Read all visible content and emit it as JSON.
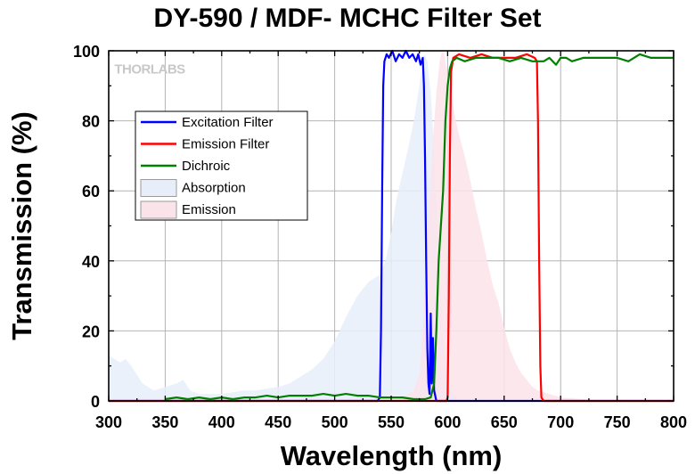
{
  "chart_data": {
    "type": "line",
    "title": "DY-590 / MDF- MCHC Filter Set",
    "xlabel": "Wavelength (nm)",
    "ylabel": "Transmission (%)",
    "xlim": [
      300,
      800
    ],
    "ylim": [
      0,
      100
    ],
    "x_ticks": [
      300,
      350,
      400,
      450,
      500,
      550,
      600,
      650,
      700,
      750,
      800
    ],
    "y_ticks": [
      0,
      20,
      40,
      60,
      80,
      100
    ],
    "grid": true,
    "legend_position": "upper-left",
    "watermark": "THORLABS",
    "series": [
      {
        "name": "Excitation Filter",
        "kind": "line",
        "color": "#0000ff",
        "points": [
          [
            300,
            0
          ],
          [
            538,
            0
          ],
          [
            540,
            1
          ],
          [
            541,
            20
          ],
          [
            542,
            60
          ],
          [
            543,
            90
          ],
          [
            544,
            97
          ],
          [
            546,
            99
          ],
          [
            548,
            98
          ],
          [
            551,
            100
          ],
          [
            554,
            97
          ],
          [
            557,
            99
          ],
          [
            560,
            98
          ],
          [
            563,
            100
          ],
          [
            566,
            98
          ],
          [
            569,
            99
          ],
          [
            572,
            97
          ],
          [
            574,
            99
          ],
          [
            576,
            96
          ],
          [
            578,
            98
          ],
          [
            579,
            90
          ],
          [
            580,
            70
          ],
          [
            581,
            40
          ],
          [
            582,
            15
          ],
          [
            583,
            5
          ],
          [
            584,
            2
          ],
          [
            585,
            25
          ],
          [
            586,
            5
          ],
          [
            587,
            18
          ],
          [
            588,
            3
          ],
          [
            590,
            0
          ],
          [
            800,
            0
          ]
        ]
      },
      {
        "name": "Emission Filter",
        "kind": "line",
        "color": "#ff0000",
        "points": [
          [
            300,
            0
          ],
          [
            599,
            0
          ],
          [
            600,
            1
          ],
          [
            601,
            30
          ],
          [
            602,
            70
          ],
          [
            603,
            94
          ],
          [
            605,
            98
          ],
          [
            610,
            99
          ],
          [
            620,
            98
          ],
          [
            630,
            99
          ],
          [
            640,
            98
          ],
          [
            650,
            98
          ],
          [
            660,
            98
          ],
          [
            670,
            99
          ],
          [
            677,
            98
          ],
          [
            679,
            97
          ],
          [
            680,
            80
          ],
          [
            681,
            40
          ],
          [
            682,
            10
          ],
          [
            683,
            1
          ],
          [
            685,
            0
          ],
          [
            800,
            0
          ]
        ]
      },
      {
        "name": "Dichroic",
        "kind": "line",
        "color": "#008000",
        "points": [
          [
            350,
            0.5
          ],
          [
            360,
            1
          ],
          [
            370,
            0.5
          ],
          [
            380,
            1
          ],
          [
            390,
            0.5
          ],
          [
            400,
            1
          ],
          [
            410,
            0.5
          ],
          [
            420,
            1
          ],
          [
            430,
            1
          ],
          [
            440,
            1.5
          ],
          [
            450,
            1
          ],
          [
            460,
            1.5
          ],
          [
            470,
            1.5
          ],
          [
            480,
            1.5
          ],
          [
            490,
            2
          ],
          [
            500,
            1.5
          ],
          [
            510,
            2
          ],
          [
            520,
            1.5
          ],
          [
            530,
            1.5
          ],
          [
            540,
            1
          ],
          [
            550,
            1
          ],
          [
            560,
            1
          ],
          [
            570,
            0.5
          ],
          [
            580,
            0.5
          ],
          [
            585,
            1
          ],
          [
            588,
            5
          ],
          [
            590,
            20
          ],
          [
            592,
            40
          ],
          [
            594,
            50
          ],
          [
            596,
            60
          ],
          [
            598,
            80
          ],
          [
            600,
            90
          ],
          [
            602,
            95
          ],
          [
            604,
            97
          ],
          [
            608,
            98
          ],
          [
            615,
            97
          ],
          [
            625,
            98
          ],
          [
            635,
            98
          ],
          [
            645,
            98
          ],
          [
            655,
            97
          ],
          [
            665,
            98
          ],
          [
            675,
            97
          ],
          [
            685,
            97
          ],
          [
            690,
            98
          ],
          [
            696,
            96
          ],
          [
            700,
            98
          ],
          [
            705,
            98
          ],
          [
            710,
            97
          ],
          [
            720,
            98
          ],
          [
            730,
            98
          ],
          [
            740,
            98
          ],
          [
            750,
            98
          ],
          [
            760,
            97
          ],
          [
            770,
            99
          ],
          [
            780,
            98
          ],
          [
            790,
            98
          ],
          [
            800,
            98
          ]
        ]
      },
      {
        "name": "Absorption",
        "kind": "area",
        "color": "#e8eef9",
        "points": [
          [
            300,
            13
          ],
          [
            310,
            11
          ],
          [
            315,
            12
          ],
          [
            320,
            10
          ],
          [
            330,
            5
          ],
          [
            340,
            3
          ],
          [
            350,
            4
          ],
          [
            360,
            5
          ],
          [
            366,
            6
          ],
          [
            372,
            3
          ],
          [
            380,
            2
          ],
          [
            390,
            2
          ],
          [
            400,
            2
          ],
          [
            410,
            2.5
          ],
          [
            420,
            3
          ],
          [
            430,
            3
          ],
          [
            440,
            3.5
          ],
          [
            450,
            4
          ],
          [
            460,
            5
          ],
          [
            470,
            7
          ],
          [
            480,
            9
          ],
          [
            490,
            12
          ],
          [
            500,
            17
          ],
          [
            510,
            24
          ],
          [
            520,
            30
          ],
          [
            530,
            34
          ],
          [
            540,
            36
          ],
          [
            545,
            40
          ],
          [
            550,
            48
          ],
          [
            555,
            58
          ],
          [
            560,
            65
          ],
          [
            565,
            72
          ],
          [
            570,
            80
          ],
          [
            575,
            90
          ],
          [
            578,
            98
          ],
          [
            580,
            99
          ],
          [
            582,
            97
          ],
          [
            585,
            88
          ],
          [
            588,
            72
          ],
          [
            591,
            50
          ],
          [
            594,
            30
          ],
          [
            597,
            15
          ],
          [
            600,
            6
          ],
          [
            605,
            2
          ],
          [
            612,
            0
          ],
          [
            800,
            0
          ]
        ]
      },
      {
        "name": "Emission",
        "kind": "area",
        "color": "#fbe3ea",
        "points": [
          [
            300,
            0
          ],
          [
            550,
            0
          ],
          [
            560,
            1
          ],
          [
            570,
            3
          ],
          [
            575,
            8
          ],
          [
            578,
            20
          ],
          [
            581,
            40
          ],
          [
            584,
            58
          ],
          [
            587,
            75
          ],
          [
            590,
            88
          ],
          [
            593,
            97
          ],
          [
            595,
            100
          ],
          [
            597,
            99
          ],
          [
            600,
            93
          ],
          [
            603,
            88
          ],
          [
            606,
            82
          ],
          [
            610,
            76
          ],
          [
            615,
            70
          ],
          [
            620,
            63
          ],
          [
            625,
            55
          ],
          [
            630,
            48
          ],
          [
            635,
            40
          ],
          [
            640,
            33
          ],
          [
            645,
            28
          ],
          [
            650,
            21
          ],
          [
            655,
            15
          ],
          [
            660,
            11
          ],
          [
            665,
            8
          ],
          [
            670,
            6
          ],
          [
            675,
            4
          ],
          [
            680,
            3
          ],
          [
            690,
            2
          ],
          [
            700,
            1
          ],
          [
            720,
            0.5
          ],
          [
            740,
            0
          ],
          [
            800,
            0
          ]
        ]
      }
    ]
  }
}
